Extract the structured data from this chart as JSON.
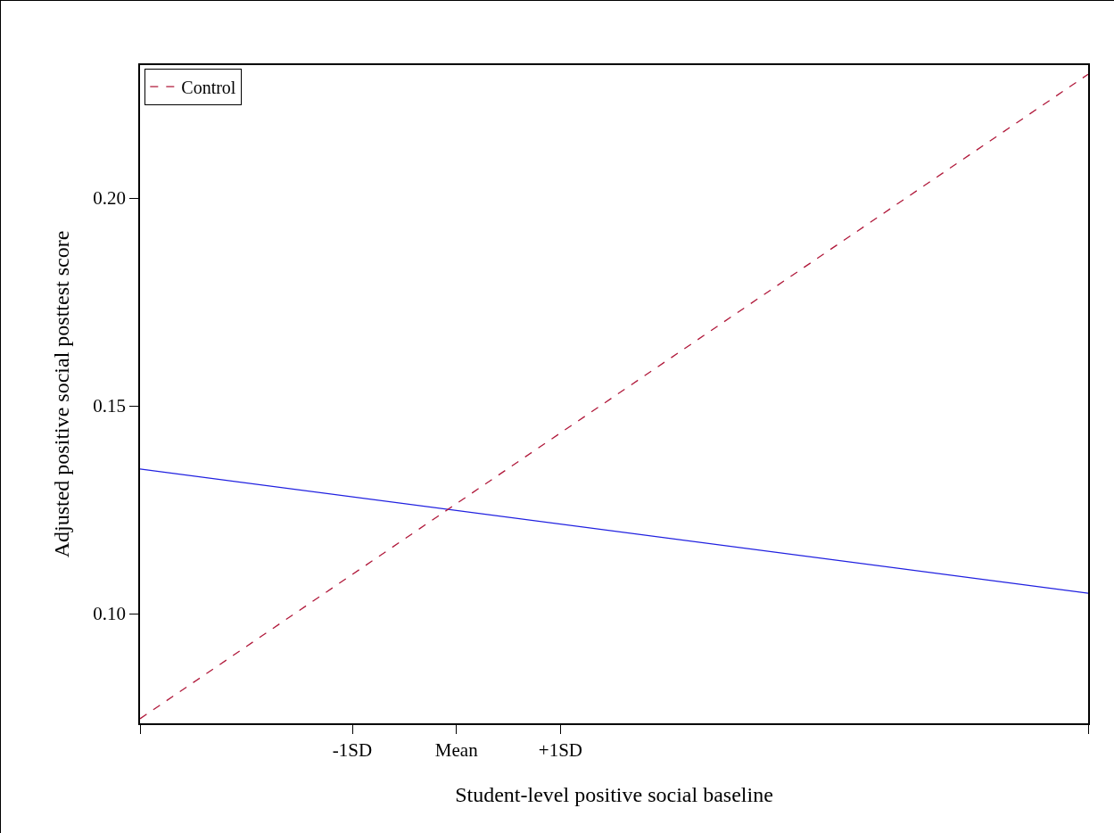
{
  "chart_data": {
    "type": "line",
    "xlabel": "Student-level positive social baseline",
    "ylabel": "Adjusted positive social posttest score",
    "x": [
      -3.04,
      6.07
    ],
    "series": [
      {
        "color": "#2020e0",
        "values": [
          0.1348,
          0.1049
        ],
        "line_style": "solid"
      },
      {
        "name": "Control",
        "color": "#b0183a",
        "values": [
          0.0747,
          0.2298
        ],
        "line_style": "dashed"
      }
    ],
    "xlim": [
      -3.04,
      6.07
    ],
    "xticks": [
      {
        "value": -3.04,
        "label": null
      },
      {
        "value": -1,
        "label": "-1SD"
      },
      {
        "value": 0,
        "label": "Mean"
      },
      {
        "value": 1,
        "label": "+1SD"
      },
      {
        "value": 6.07,
        "label": null
      }
    ],
    "ylim": [
      0.0736,
      0.232
    ],
    "yticks": [
      {
        "value": 0.1,
        "label": "0.10"
      },
      {
        "value": 0.15,
        "label": "0.15"
      },
      {
        "value": 0.2,
        "label": "0.20"
      }
    ],
    "grid": false,
    "legend": "top left",
    "marker": "none"
  }
}
